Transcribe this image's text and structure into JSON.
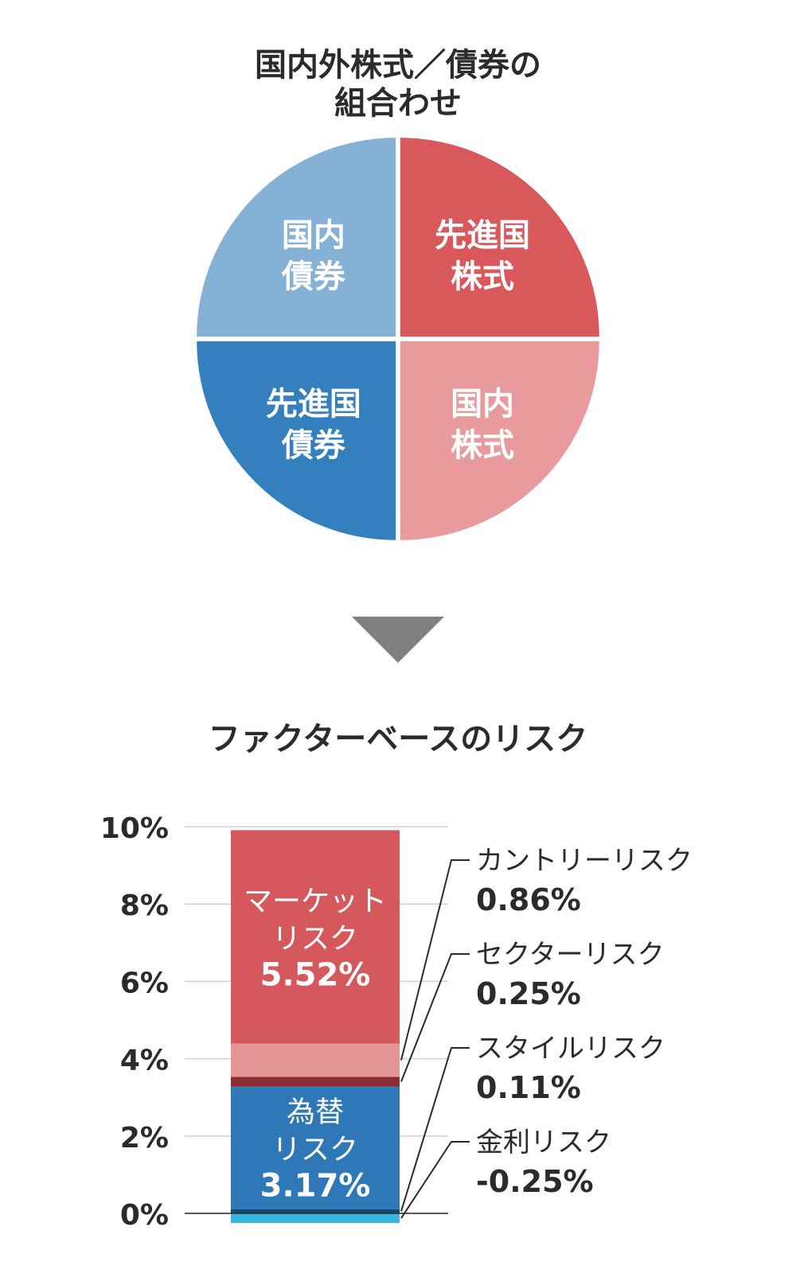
{
  "chart_data": [
    {
      "type": "pie",
      "title": [
        "国内外株式／債券の",
        "組合わせ"
      ],
      "slices": [
        {
          "label": [
            "先進国",
            "株式"
          ],
          "value": 25,
          "color": "#d9585c"
        },
        {
          "label": [
            "国内",
            "株式"
          ],
          "value": 25,
          "color": "#e99a9c"
        },
        {
          "label": [
            "先進国",
            "債券"
          ],
          "value": 25,
          "color": "#3480be"
        },
        {
          "label": [
            "国内",
            "債券"
          ],
          "value": 25,
          "color": "#86b1d6"
        }
      ]
    },
    {
      "type": "bar",
      "title": "ファクターベースのリスク",
      "yticks": [
        "0%",
        "2%",
        "4%",
        "6%",
        "8%",
        "10%"
      ],
      "ylim": [
        -0.25,
        10
      ],
      "grid": true,
      "segments": [
        {
          "name": "金利リスク",
          "value": -0.25,
          "value_label": "-0.25%",
          "color": "#38b6e0",
          "inside_label": [],
          "callout": true
        },
        {
          "name": "スタイルリスク",
          "value": 0.11,
          "value_label": "0.11%",
          "color": "#174a78",
          "inside_label": [],
          "callout": true
        },
        {
          "name": "為替リスク",
          "value": 3.17,
          "value_label": "3.17%",
          "color": "#2f78b8",
          "inside_label": [
            "為替",
            "リスク",
            "3.17%"
          ],
          "callout": false
        },
        {
          "name": "セクターリスク",
          "value": 0.25,
          "value_label": "0.25%",
          "color": "#8e2a32",
          "inside_label": [],
          "callout": true
        },
        {
          "name": "カントリーリスク",
          "value": 0.86,
          "value_label": "0.86%",
          "color": "#e39597",
          "inside_label": [],
          "callout": true
        },
        {
          "name": "マーケットリスク",
          "value": 5.52,
          "value_label": "5.52%",
          "color": "#d4585c",
          "inside_label": [
            "マーケット",
            "リスク",
            "5.52%"
          ],
          "callout": false
        }
      ]
    }
  ]
}
